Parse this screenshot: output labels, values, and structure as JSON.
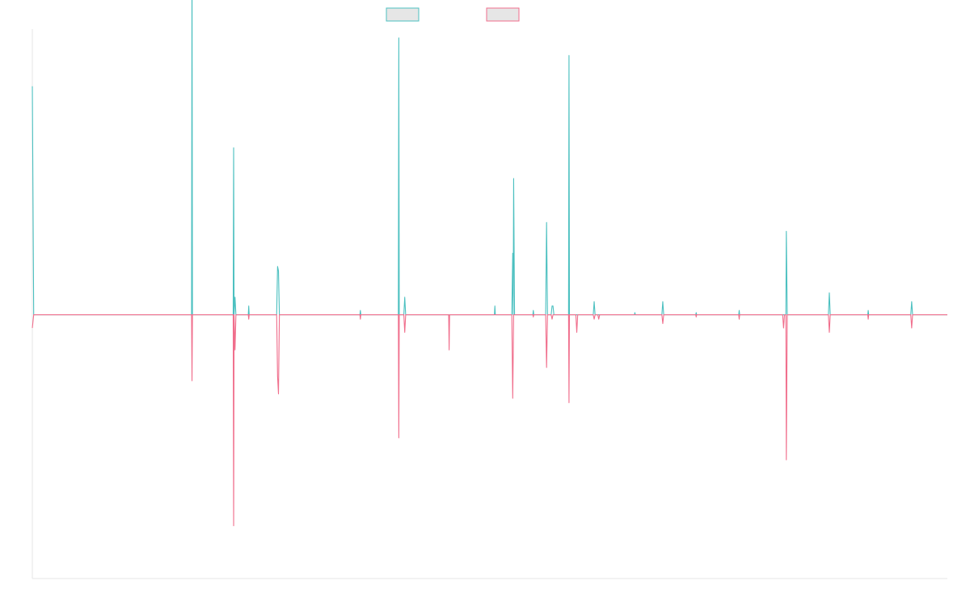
{
  "chart_data": {
    "type": "line",
    "title": "",
    "xlabel": "",
    "ylabel": "",
    "xlim": [
      0,
      1000
    ],
    "ylim": [
      -0.6,
      0.65
    ],
    "grid": false,
    "legend_position": "top-center",
    "series": [
      {
        "color": "#4cc0c0",
        "fill": "#e6e6e6",
        "points": [
          [
            0,
            0.52
          ],
          [
            1.5,
            0
          ],
          [
            174,
            0
          ],
          [
            174.5,
            0.82
          ],
          [
            175,
            0
          ],
          [
            219.5,
            0
          ],
          [
            220,
            0.38
          ],
          [
            220.5,
            0
          ],
          [
            221.5,
            0.04
          ],
          [
            222.5,
            0
          ],
          [
            236,
            0
          ],
          [
            236.5,
            0.02
          ],
          [
            237,
            0
          ],
          [
            267,
            0
          ],
          [
            268,
            0.11
          ],
          [
            269,
            0.1
          ],
          [
            270,
            0
          ],
          [
            358,
            0
          ],
          [
            358.5,
            0.01
          ],
          [
            359,
            0
          ],
          [
            400,
            0
          ],
          [
            400.5,
            0.63
          ],
          [
            401,
            0
          ],
          [
            406,
            0
          ],
          [
            407,
            0.04
          ],
          [
            408,
            0
          ],
          [
            505,
            0
          ],
          [
            505.5,
            0.02
          ],
          [
            506,
            0
          ],
          [
            524,
            0
          ],
          [
            525,
            0.14
          ],
          [
            525.5,
            0
          ],
          [
            526,
            0.31
          ],
          [
            527,
            0
          ],
          [
            547,
            0
          ],
          [
            547.5,
            0.01
          ],
          [
            548,
            0
          ],
          [
            561,
            0
          ],
          [
            562,
            0.21
          ],
          [
            563,
            0
          ],
          [
            567,
            0
          ],
          [
            568,
            0.02
          ],
          [
            569,
            0.02
          ],
          [
            570,
            0
          ],
          [
            586,
            0
          ],
          [
            586.5,
            0.59
          ],
          [
            587,
            0
          ],
          [
            613,
            0
          ],
          [
            614,
            0.03
          ],
          [
            615,
            0
          ],
          [
            658,
            0
          ],
          [
            658.5,
            0.005
          ],
          [
            659,
            0
          ],
          [
            688,
            0
          ],
          [
            689,
            0.03
          ],
          [
            690,
            0
          ],
          [
            725,
            0
          ],
          [
            725.5,
            0.005
          ],
          [
            726,
            0
          ],
          [
            772,
            0
          ],
          [
            772.5,
            0.01
          ],
          [
            773,
            0
          ],
          [
            823,
            0
          ],
          [
            823.5,
            0
          ],
          [
            824,
            0.19
          ],
          [
            825,
            0
          ],
          [
            870,
            0
          ],
          [
            871,
            0.05
          ],
          [
            872,
            0
          ],
          [
            913,
            0
          ],
          [
            913.5,
            0.01
          ],
          [
            914,
            0
          ],
          [
            960,
            0
          ],
          [
            961,
            0.03
          ],
          [
            962,
            0
          ],
          [
            1000,
            0
          ]
        ]
      },
      {
        "color": "#f06e8c",
        "fill": "#e6e6e6",
        "points": [
          [
            0,
            -0.03
          ],
          [
            1.5,
            0
          ],
          [
            174,
            0
          ],
          [
            174.5,
            -0.15
          ],
          [
            175,
            0
          ],
          [
            219.5,
            0
          ],
          [
            220,
            -0.48
          ],
          [
            220.5,
            0
          ],
          [
            221.5,
            -0.08
          ],
          [
            222.5,
            0
          ],
          [
            236,
            0
          ],
          [
            236.5,
            -0.01
          ],
          [
            237,
            0
          ],
          [
            267,
            0
          ],
          [
            268,
            -0.14
          ],
          [
            269,
            -0.18
          ],
          [
            270,
            0
          ],
          [
            358,
            0
          ],
          [
            358.5,
            -0.01
          ],
          [
            359,
            0
          ],
          [
            400,
            0
          ],
          [
            400.5,
            -0.28
          ],
          [
            401,
            0
          ],
          [
            406,
            0
          ],
          [
            407,
            -0.04
          ],
          [
            408,
            0
          ],
          [
            455,
            0
          ],
          [
            455.5,
            -0.08
          ],
          [
            456,
            0
          ],
          [
            524,
            0
          ],
          [
            525,
            -0.19
          ],
          [
            526,
            0
          ],
          [
            527,
            0
          ],
          [
            547,
            0
          ],
          [
            547.5,
            -0.005
          ],
          [
            548,
            0
          ],
          [
            561,
            0
          ],
          [
            562,
            -0.12
          ],
          [
            563,
            0
          ],
          [
            567,
            0
          ],
          [
            568,
            -0.01
          ],
          [
            569,
            0
          ],
          [
            586,
            0
          ],
          [
            586.5,
            -0.2
          ],
          [
            587,
            0
          ],
          [
            594,
            0
          ],
          [
            595,
            -0.04
          ],
          [
            596,
            0
          ],
          [
            613,
            0
          ],
          [
            614,
            -0.01
          ],
          [
            615,
            0
          ],
          [
            618,
            0
          ],
          [
            619,
            -0.01
          ],
          [
            620,
            0
          ],
          [
            688,
            0
          ],
          [
            689,
            -0.02
          ],
          [
            690,
            0
          ],
          [
            725,
            0
          ],
          [
            725.5,
            -0.005
          ],
          [
            726,
            0
          ],
          [
            772,
            0
          ],
          [
            772.5,
            -0.01
          ],
          [
            773,
            0
          ],
          [
            820,
            0
          ],
          [
            821,
            -0.03
          ],
          [
            822,
            0
          ],
          [
            823,
            0
          ],
          [
            823.5,
            0
          ],
          [
            824,
            -0.33
          ],
          [
            825,
            0
          ],
          [
            870,
            0
          ],
          [
            871,
            -0.04
          ],
          [
            872,
            0
          ],
          [
            913,
            0
          ],
          [
            913.5,
            -0.01
          ],
          [
            914,
            0
          ],
          [
            960,
            0
          ],
          [
            961,
            -0.03
          ],
          [
            962,
            0
          ],
          [
            1000,
            0
          ]
        ]
      }
    ]
  }
}
